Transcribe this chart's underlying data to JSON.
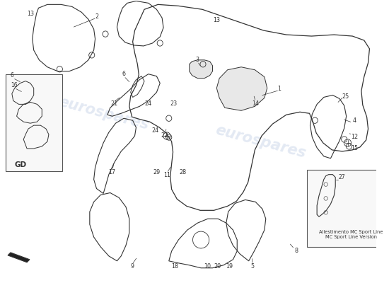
{
  "bg_color": "#ffffff",
  "watermark_text": "eurospares",
  "watermark_color": "#c8d4e8",
  "text_color": "#333333",
  "line_color": "#333333",
  "inset_text": "Allestimento MC Sport Line\nMC Sport Line Version",
  "fig_width": 5.5,
  "fig_height": 4.0
}
